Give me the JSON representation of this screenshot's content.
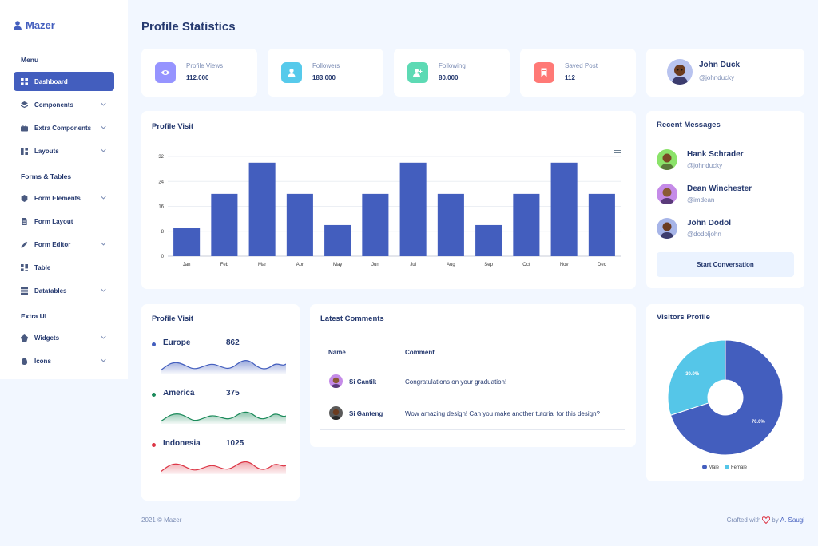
{
  "brand": {
    "name": "Mazer"
  },
  "sidebar": {
    "sections": [
      "Menu",
      "Forms & Tables",
      "Extra UI"
    ],
    "items": [
      {
        "label": "Dashboard",
        "icon": "grid-icon",
        "active": true,
        "has_submenu": false
      },
      {
        "label": "Components",
        "icon": "stack-icon",
        "active": false,
        "has_submenu": true
      },
      {
        "label": "Extra Components",
        "icon": "briefcase-icon",
        "active": false,
        "has_submenu": true
      },
      {
        "label": "Layouts",
        "icon": "layout-icon",
        "active": false,
        "has_submenu": true
      },
      {
        "label": "Form Elements",
        "icon": "hexagon-icon",
        "active": false,
        "has_submenu": true
      },
      {
        "label": "Form Layout",
        "icon": "file-icon",
        "active": false,
        "has_submenu": false
      },
      {
        "label": "Form Editor",
        "icon": "pen-icon",
        "active": false,
        "has_submenu": true
      },
      {
        "label": "Table",
        "icon": "table-icon",
        "active": false,
        "has_submenu": false
      },
      {
        "label": "Datatables",
        "icon": "datatable-icon",
        "active": false,
        "has_submenu": true
      },
      {
        "label": "Widgets",
        "icon": "pentagon-icon",
        "active": false,
        "has_submenu": true
      },
      {
        "label": "Icons",
        "icon": "egg-icon",
        "active": false,
        "has_submenu": true
      }
    ]
  },
  "page": {
    "title": "Profile Statistics"
  },
  "stats": [
    {
      "label": "Profile Views",
      "value": "112.000",
      "icon": "eye-icon",
      "color": "#9694ff"
    },
    {
      "label": "Followers",
      "value": "183.000",
      "icon": "user-icon",
      "color": "#57caeb"
    },
    {
      "label": "Following",
      "value": "80.000",
      "icon": "user-plus-icon",
      "color": "#5ddab4"
    },
    {
      "label": "Saved Post",
      "value": "112",
      "icon": "bookmark-icon",
      "color": "#ff7976"
    }
  ],
  "profile": {
    "name": "John Duck",
    "handle": "@johnducky"
  },
  "profile_visit_chart": {
    "title": "Profile Visit",
    "menu_icon": "hamburger-icon"
  },
  "chart_data": [
    {
      "type": "bar",
      "title": "Profile Visit",
      "categories": [
        "Jan",
        "Feb",
        "Mar",
        "Apr",
        "May",
        "Jun",
        "Jul",
        "Aug",
        "Sep",
        "Oct",
        "Nov",
        "Dec"
      ],
      "values": [
        9,
        20,
        30,
        20,
        10,
        20,
        30,
        20,
        10,
        20,
        30,
        20
      ],
      "yticks": [
        "0",
        "8",
        "16",
        "24",
        "32"
      ],
      "ylim": [
        0,
        32
      ],
      "grid": true,
      "color": "#435ebe"
    },
    {
      "type": "pie",
      "title": "Visitors Profile",
      "labels": [
        "Male",
        "Female"
      ],
      "values": [
        70.0,
        30.0
      ],
      "value_labels": [
        "70.0%",
        "30.0%"
      ],
      "colors": [
        "#435ebe",
        "#55c6e8"
      ],
      "legend": "bottom"
    }
  ],
  "recent_messages": {
    "title": "Recent Messages",
    "items": [
      {
        "name": "Hank Schrader",
        "handle": "@johnducky",
        "color": "#8be36a"
      },
      {
        "name": "Dean Winchester",
        "handle": "@imdean",
        "color": "#c58be8"
      },
      {
        "name": "John Dodol",
        "handle": "@dodoljohn",
        "color": "#a7b5e8"
      }
    ],
    "button": "Start Conversation"
  },
  "region_visits": {
    "title": "Profile Visit",
    "items": [
      {
        "name": "Europe",
        "value": "862",
        "color": "#435ebe"
      },
      {
        "name": "America",
        "value": "375",
        "color": "#1b8a5a"
      },
      {
        "name": "Indonesia",
        "value": "1025",
        "color": "#dc3545"
      }
    ]
  },
  "comments": {
    "title": "Latest Comments",
    "headers": [
      "Name",
      "Comment"
    ],
    "rows": [
      {
        "name": "Si Cantik",
        "comment": "Congratulations on your graduation!"
      },
      {
        "name": "Si Ganteng",
        "comment": "Wow amazing design! Can you make another tutorial for this design?"
      }
    ]
  },
  "visitors": {
    "title": "Visitors Profile"
  },
  "footer": {
    "left": "2021 © Mazer",
    "crafted": "Crafted with",
    "by": "by",
    "author": "A. Saugi"
  }
}
